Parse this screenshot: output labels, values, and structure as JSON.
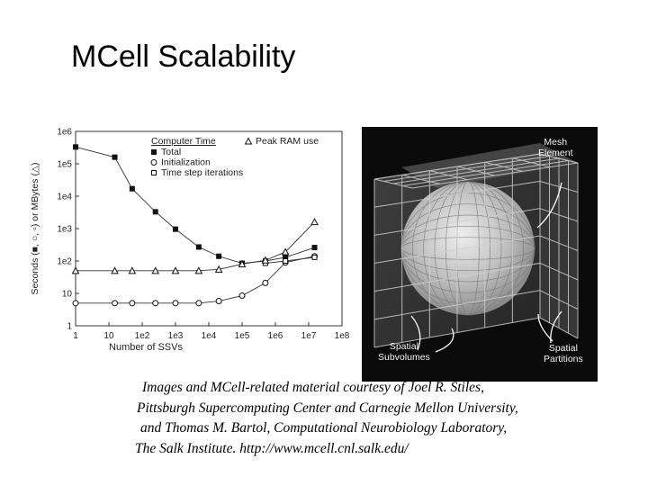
{
  "slide": {
    "title": "MCell Scalability",
    "caption_lines": [
      "Images and MCell-related material courtesy of  Joel R. Stiles,",
      "Pittsburgh Supercomputing Center and Carnegie Mellon University,",
      "and Thomas M. Bartol, Computational Neurobiology Laboratory,",
      "The Salk Institute. http://www.mcell.cnl.salk.edu/"
    ]
  },
  "chart_data": {
    "type": "line",
    "xlabel": "Number of SSVs",
    "ylabel": "Seconds (■, ○, ▫) or MBytes (△)",
    "x_scale": "log",
    "y_scale": "log",
    "xlim": [
      1,
      100000000
    ],
    "ylim": [
      1,
      1000000
    ],
    "x_ticks": [
      "1",
      "10",
      "1e2",
      "1e3",
      "1e4",
      "1e5",
      "1e6",
      "1e7",
      "1e8"
    ],
    "y_ticks": [
      "1",
      "10",
      "1e2",
      "1e3",
      "1e4",
      "1e5",
      "1e6"
    ],
    "legend_group_title": "Computer Time",
    "legend_placement": "top-right",
    "x": [
      1,
      15,
      50,
      250,
      1000,
      5000,
      20000,
      100000,
      500000,
      2000000,
      15000000
    ],
    "series": [
      {
        "name": "Total",
        "marker": "filled-square",
        "values": [
          330000,
          160000,
          17000,
          3300,
          960,
          270,
          140,
          85,
          100,
          130,
          260
        ]
      },
      {
        "name": "Initialization",
        "marker": "open-circle",
        "values": [
          5,
          5,
          5,
          5,
          5,
          5,
          5.8,
          8.5,
          21,
          90,
          140
        ]
      },
      {
        "name": "Time step iterations",
        "marker": "small-square",
        "values": [
          null,
          null,
          null,
          null,
          null,
          null,
          null,
          null,
          85,
          100,
          130
        ]
      },
      {
        "name": "Peak RAM use",
        "marker": "open-triangle",
        "values": [
          50,
          50,
          50,
          50,
          50,
          50,
          55,
          80,
          105,
          190,
          1600
        ]
      }
    ]
  },
  "figure2": {
    "labels": {
      "mesh": "Mesh\nElement",
      "subvolumes": "Spatial\nSubvolumes",
      "partitions": "Spatial\nPartitions"
    }
  }
}
